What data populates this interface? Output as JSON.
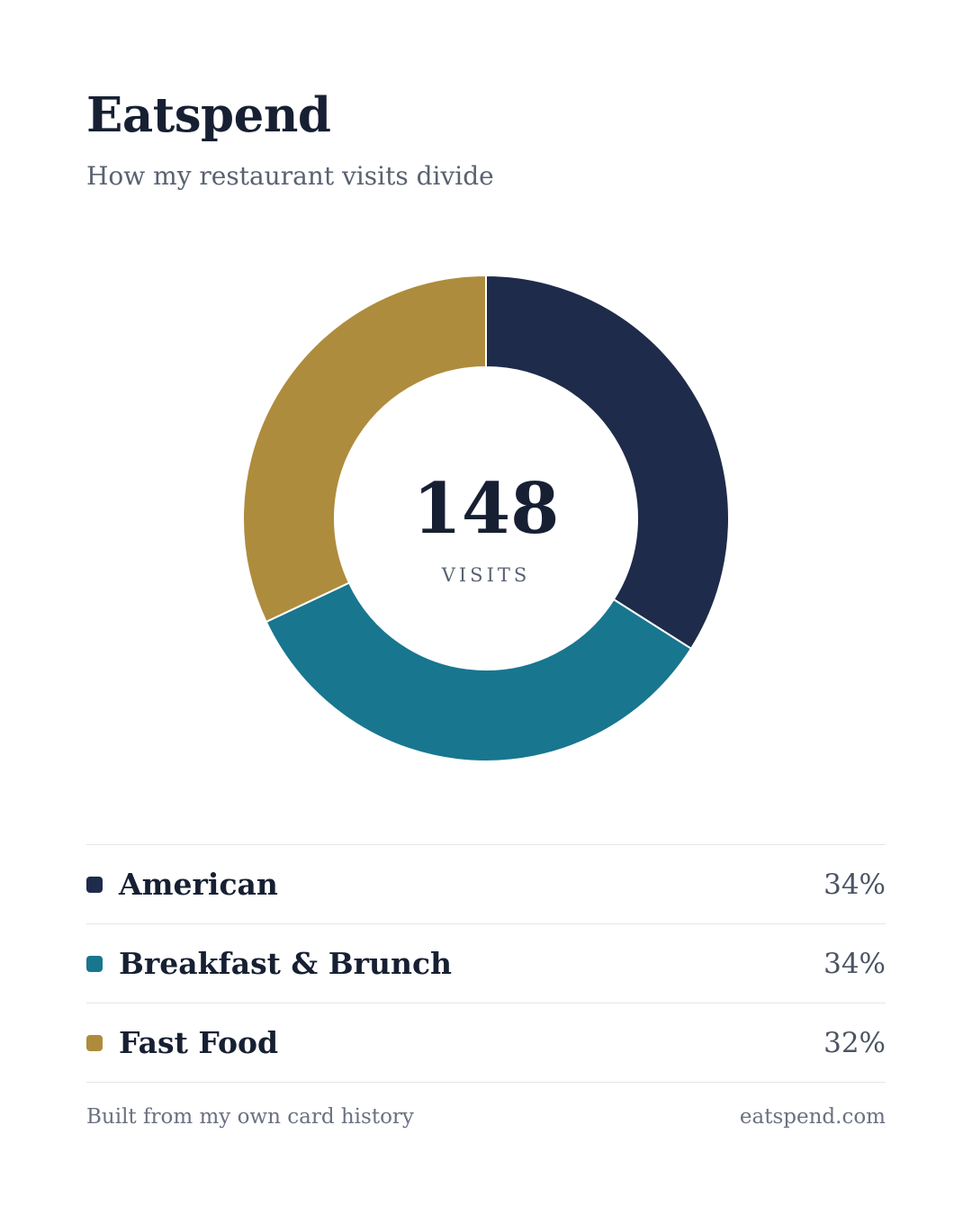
{
  "header": {
    "title": "Eatspend",
    "subtitle": "How my restaurant visits divide"
  },
  "center": {
    "value": "148",
    "label": "VISITS"
  },
  "chart_data": {
    "type": "pie",
    "variant": "donut",
    "categories": [
      "American",
      "Breakfast & Brunch",
      "Fast Food"
    ],
    "values": [
      34,
      34,
      32
    ],
    "value_labels": [
      "34%",
      "34%",
      "32%"
    ],
    "colors": [
      "#1e2b4a",
      "#18768f",
      "#ae8c3d"
    ],
    "total": 148,
    "total_label": "VISITS"
  },
  "footer": {
    "left": "Built from my own card history",
    "right": "eatspend.com"
  }
}
